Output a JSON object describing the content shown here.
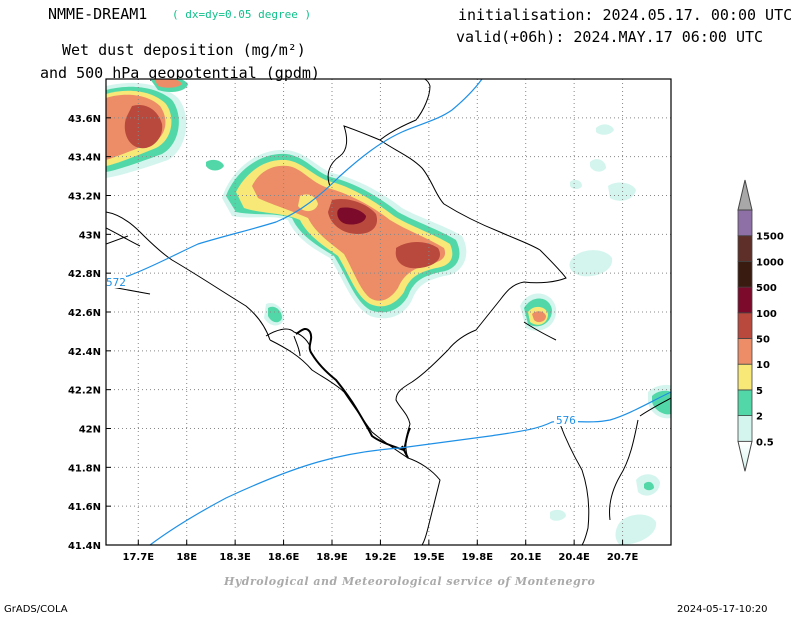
{
  "header": {
    "model": "NMME-DREAM1",
    "resolution": "( dx=dy=0.05 degree )",
    "title_line1": "Wet dust deposition (mg/m²)",
    "title_line2": "and 500 hPa geopotential (gpdm)",
    "initialisation": "initialisation: 2024.05.17. 00:00 UTC",
    "valid": "valid(+06h): 2024.MAY.17 06:00 UTC"
  },
  "map": {
    "lon_range": [
      17.5,
      21.0
    ],
    "lat_range": [
      41.4,
      43.8
    ],
    "lon_ticks": [
      "17.7E",
      "18E",
      "18.3E",
      "18.6E",
      "18.9E",
      "19.2E",
      "19.5E",
      "19.8E",
      "20.1E",
      "20.4E",
      "20.7E"
    ],
    "lon_values": [
      17.7,
      18.0,
      18.3,
      18.6,
      18.9,
      19.2,
      19.5,
      19.8,
      20.1,
      20.4,
      20.7
    ],
    "lat_ticks": [
      "41.4N",
      "41.6N",
      "41.8N",
      "42N",
      "42.2N",
      "42.4N",
      "42.6N",
      "42.8N",
      "43N",
      "43.2N",
      "43.4N",
      "43.6N"
    ],
    "lat_values": [
      41.4,
      41.6,
      41.8,
      42.0,
      42.2,
      42.4,
      42.6,
      42.8,
      43.0,
      43.2,
      43.4,
      43.6
    ],
    "grid": true,
    "contour_color": "#1e90e6",
    "contour_labels": [
      "572",
      "576"
    ]
  },
  "colorbar": {
    "levels": [
      "0.5",
      "2",
      "5",
      "10",
      "50",
      "100",
      "500",
      "1000",
      "1500"
    ],
    "colors": [
      "#d4f5ee",
      "#52d8a8",
      "#f7e878",
      "#ec8d68",
      "#b8493c",
      "#7c0a2a",
      "#3a1b10",
      "#5d2f28",
      "#8e6fa6"
    ]
  },
  "footer": {
    "credit": "Hydrological and Meteorological service of Montenegro",
    "software": "GrADS/COLA",
    "timestamp": "2024-05-17-10:20"
  }
}
